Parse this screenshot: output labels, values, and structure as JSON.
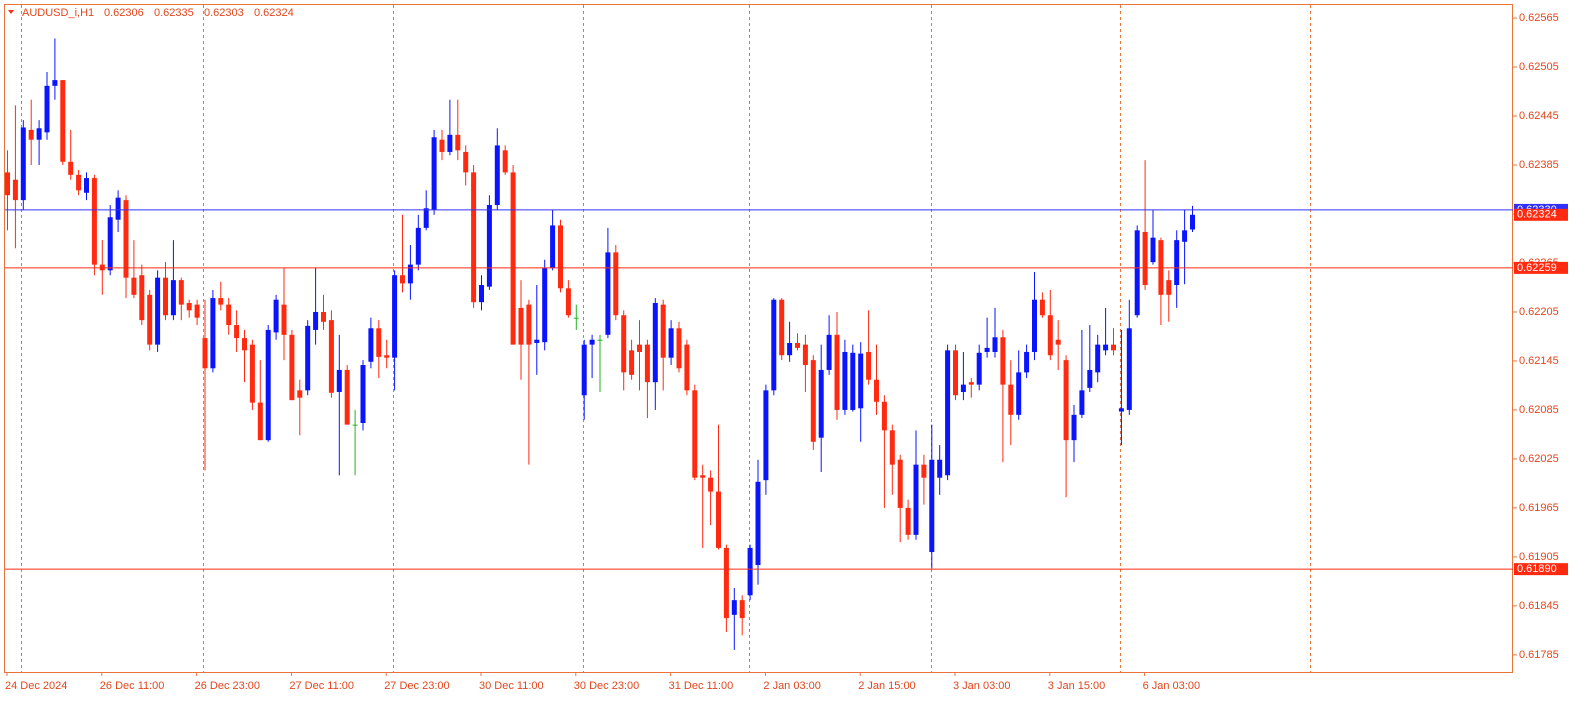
{
  "chart_data": {
    "type": "candlestick",
    "symbol": "AUDUSD_i,H1",
    "x": [
      "24 Dec 2024",
      null,
      null,
      null,
      null,
      null,
      null,
      null,
      null,
      null,
      null,
      null,
      "26 Dec 11:00",
      null,
      null,
      null,
      null,
      null,
      null,
      null,
      null,
      null,
      null,
      null,
      "26 Dec 23:00",
      null,
      null,
      null,
      null,
      null,
      null,
      null,
      null,
      null,
      null,
      null,
      "27 Dec 11:00",
      null,
      null,
      null,
      null,
      null,
      null,
      null,
      null,
      null,
      null,
      null,
      "27 Dec 23:00",
      null,
      null,
      null,
      null,
      null,
      null,
      null,
      null,
      null,
      null,
      null,
      "30 Dec 11:00",
      null,
      null,
      null,
      null,
      null,
      null,
      null,
      null,
      null,
      null,
      null,
      "30 Dec 23:00",
      null,
      null,
      null,
      null,
      null,
      null,
      null,
      null,
      null,
      null,
      null,
      "31 Dec 11:00",
      null,
      null,
      null,
      null,
      null,
      null,
      null,
      null,
      null,
      null,
      null,
      "2 Jan 03:00",
      null,
      null,
      null,
      null,
      null,
      null,
      null,
      null,
      null,
      null,
      null,
      "2 Jan 15:00",
      null,
      null,
      null,
      null,
      null,
      null,
      null,
      null,
      null,
      null,
      null,
      "3 Jan 03:00",
      null,
      null,
      null,
      null,
      null,
      null,
      null,
      null,
      null,
      null,
      null,
      "3 Jan 15:00",
      null,
      null,
      null,
      null,
      null,
      null,
      null,
      null,
      null,
      null,
      null,
      "6 Jan 03:00",
      null,
      null,
      null,
      null,
      null,
      null
    ],
    "open": [
      0.62376,
      0.62367,
      0.62342,
      0.62428,
      0.62416,
      0.62425,
      0.62482,
      0.62489,
      0.62389,
      0.62373,
      0.62351,
      0.62369,
      0.62263,
      0.62256,
      0.62318,
      0.62342,
      0.62247,
      0.6225,
      0.62226,
      0.62165,
      0.62247,
      0.62201,
      0.62244,
      0.62216,
      0.62214,
      0.62173,
      0.62136,
      0.62222,
      0.62214,
      0.62189,
      0.62173,
      0.62165,
      0.62094,
      0.62048,
      0.6218,
      0.62214,
      0.62177,
      0.62109,
      0.62109,
      0.62183,
      0.62205,
      0.62195,
      0.62107,
      0.62134,
      0.62067,
      0.62069,
      0.62144,
      0.62185,
      0.62152,
      0.62149,
      0.6225,
      0.6224,
      0.62263,
      0.62308,
      0.6233,
      0.62416,
      0.62401,
      0.62422,
      0.62401,
      0.62376,
      0.62217,
      0.62236,
      0.62336,
      0.62403,
      0.62376,
      0.6221,
      0.62214,
      0.62167,
      0.62168,
      0.62259,
      0.62311,
      0.62234,
      0.62198,
      0.62103,
      0.62165,
      0.62171,
      0.62177,
      0.62278,
      0.62201,
      0.62158,
      0.62165,
      0.62165,
      0.62119,
      0.62214,
      0.62149,
      0.62185,
      0.62165,
      0.62109,
      0.62005,
      0.62002,
      0.61985,
      0.61916,
      0.61834,
      0.61852,
      0.61858,
      0.61895,
      0.61999,
      0.62109,
      0.6222,
      0.62152,
      0.62167,
      0.62165,
      0.62146,
      0.62051,
      0.62134,
      0.62177,
      0.62085,
      0.62085,
      0.62087,
      0.62156,
      0.62122,
      0.62095,
      0.6206,
      0.62024,
      0.61965,
      0.61932,
      0.62018,
      0.61911,
      0.62002,
      0.62005,
      0.62158,
      0.62107,
      0.62119,
      0.62116,
      0.62156,
      0.62156,
      0.62174,
      0.62116,
      0.62079,
      0.62131,
      0.62156,
      0.6222,
      0.62201,
      0.62171,
      0.62146,
      0.62048,
      0.62079,
      0.62112,
      0.62131,
      0.62158,
      0.62165,
      0.62083,
      0.62085,
      0.62201,
      0.62303,
      0.62266,
      0.62293,
      0.62244,
      0.62238,
      0.62291,
      0.62306
    ],
    "high": [
      0.62403,
      0.62458,
      0.6244,
      0.62465,
      0.6244,
      0.62499,
      0.6254,
      0.62489,
      0.62428,
      0.62379,
      0.62376,
      0.62373,
      0.62293,
      0.62336,
      0.62354,
      0.62348,
      0.62293,
      0.62263,
      0.62232,
      0.62256,
      0.62266,
      0.62293,
      0.62247,
      0.6222,
      0.6222,
      0.6222,
      0.62232,
      0.62242,
      0.62222,
      0.62207,
      0.62183,
      0.62171,
      0.62146,
      0.62189,
      0.62226,
      0.62259,
      0.62183,
      0.62122,
      0.62195,
      0.62259,
      0.62226,
      0.62207,
      0.62177,
      0.6214,
      0.62085,
      0.62146,
      0.62198,
      0.62195,
      0.62171,
      0.62256,
      0.62324,
      0.62287,
      0.62324,
      0.62354,
      0.62428,
      0.62428,
      0.62465,
      0.62465,
      0.62409,
      0.62385,
      0.6225,
      0.62348,
      0.6243,
      0.62409,
      0.62385,
      0.62244,
      0.6222,
      0.62238,
      0.62269,
      0.6233,
      0.62318,
      0.62244,
      0.62214,
      0.62171,
      0.62177,
      0.62177,
      0.62308,
      0.62287,
      0.62207,
      0.62171,
      0.62195,
      0.62171,
      0.62222,
      0.6222,
      0.62195,
      0.62193,
      0.62171,
      0.62116,
      0.62018,
      0.62011,
      0.62067,
      0.6192,
      0.61867,
      0.61858,
      0.6192,
      0.62024,
      0.62116,
      0.62222,
      0.62222,
      0.62193,
      0.62179,
      0.62177,
      0.62152,
      0.62165,
      0.62201,
      0.62205,
      0.62171,
      0.62165,
      0.62168,
      0.62207,
      0.62165,
      0.62103,
      0.62067,
      0.6203,
      0.61975,
      0.6206,
      0.6203,
      0.62067,
      0.62042,
      0.62165,
      0.62165,
      0.62156,
      0.62124,
      0.62165,
      0.62198,
      0.6221,
      0.62183,
      0.62146,
      0.62158,
      0.62165,
      0.62254,
      0.62229,
      0.62232,
      0.62195,
      0.62152,
      0.62091,
      0.62183,
      0.62189,
      0.62177,
      0.6221,
      0.62185,
      0.62183,
      0.6222,
      0.62311,
      0.62391,
      0.6233,
      0.62296,
      0.62256,
      0.62305,
      0.6233,
      0.62335
    ],
    "low": [
      0.62305,
      0.62283,
      0.6233,
      0.62385,
      0.62385,
      0.62416,
      0.62465,
      0.62385,
      0.62367,
      0.62348,
      0.62342,
      0.6225,
      0.62226,
      0.6225,
      0.62303,
      0.62222,
      0.62222,
      0.62189,
      0.62158,
      0.62156,
      0.62195,
      0.62195,
      0.62195,
      0.62198,
      0.62189,
      0.62011,
      0.62131,
      0.62207,
      0.62177,
      0.62156,
      0.62119,
      0.62085,
      0.62048,
      0.62046,
      0.62171,
      0.62146,
      0.62097,
      0.62054,
      0.62103,
      0.62165,
      0.62183,
      0.621,
      0.62005,
      0.62067,
      0.62005,
      0.6206,
      0.62136,
      0.62124,
      0.62136,
      0.62109,
      0.62229,
      0.6222,
      0.62256,
      0.62305,
      0.62324,
      0.62391,
      0.62397,
      0.62391,
      0.6236,
      0.6221,
      0.62207,
      0.62232,
      0.6233,
      0.62373,
      0.62165,
      0.62122,
      0.62018,
      0.62128,
      0.62158,
      0.62256,
      0.62229,
      0.62198,
      0.62183,
      0.62073,
      0.62124,
      0.62107,
      0.62173,
      0.62195,
      0.62109,
      0.62122,
      0.62109,
      0.62075,
      0.62085,
      0.62109,
      0.6214,
      0.62131,
      0.62103,
      0.61999,
      0.61916,
      0.61944,
      0.61914,
      0.61813,
      0.61791,
      0.61809,
      0.61852,
      0.61871,
      0.61981,
      0.62103,
      0.62146,
      0.62144,
      0.62158,
      0.62107,
      0.62036,
      0.62009,
      0.62128,
      0.62073,
      0.62079,
      0.62083,
      0.62046,
      0.62116,
      0.62079,
      0.61965,
      0.61981,
      0.61923,
      0.61926,
      0.61926,
      0.61969,
      0.61891,
      0.61981,
      0.61999,
      0.62097,
      0.62097,
      0.621,
      0.62109,
      0.62149,
      0.62149,
      0.62021,
      0.62042,
      0.62073,
      0.62124,
      0.62146,
      0.62198,
      0.62146,
      0.62134,
      0.61978,
      0.62021,
      0.62075,
      0.62107,
      0.62119,
      0.62152,
      0.62152,
      0.62042,
      0.62079,
      0.62198,
      0.62232,
      0.62263,
      0.62189,
      0.62193,
      0.6221,
      0.62239,
      0.62303
    ],
    "close": [
      0.62348,
      0.62342,
      0.62431,
      0.62416,
      0.6243,
      0.62482,
      0.62489,
      0.62389,
      0.62373,
      0.62354,
      0.62369,
      0.62263,
      0.62256,
      0.62321,
      0.62345,
      0.62247,
      0.62226,
      0.62195,
      0.62165,
      0.62247,
      0.62201,
      0.62244,
      0.62214,
      0.62207,
      0.62198,
      0.62136,
      0.62222,
      0.62214,
      0.62189,
      0.62173,
      0.62158,
      0.62094,
      0.62048,
      0.62183,
      0.6222,
      0.62177,
      0.62097,
      0.621,
      0.62188,
      0.62205,
      0.62193,
      0.62106,
      0.62134,
      0.62067,
      0.62067,
      0.6214,
      0.62185,
      0.6215,
      0.62149,
      0.6225,
      0.6224,
      0.62263,
      0.62308,
      0.62332,
      0.62419,
      0.62401,
      0.62422,
      0.62403,
      0.62376,
      0.62217,
      0.62238,
      0.62336,
      0.62409,
      0.62376,
      0.62165,
      0.62165,
      0.62165,
      0.62171,
      0.62259,
      0.62311,
      0.62234,
      0.62201,
      0.62198,
      0.62165,
      0.62171,
      0.62171,
      0.62278,
      0.62201,
      0.62131,
      0.62128,
      0.62156,
      0.62119,
      0.62216,
      0.62149,
      0.62185,
      0.62136,
      0.62109,
      0.62002,
      0.62002,
      0.61985,
      0.61916,
      0.6183,
      0.61852,
      0.6183,
      0.61916,
      0.61997,
      0.62109,
      0.6222,
      0.62152,
      0.62167,
      0.62161,
      0.6214,
      0.62046,
      0.62134,
      0.62177,
      0.62085,
      0.62156,
      0.62155,
      0.62154,
      0.62122,
      0.62095,
      0.6206,
      0.62018,
      0.61965,
      0.61932,
      0.62018,
      0.62002,
      0.62024,
      0.62024,
      0.62158,
      0.62103,
      0.62116,
      0.62116,
      0.62155,
      0.62161,
      0.62174,
      0.62116,
      0.62079,
      0.62131,
      0.62156,
      0.6222,
      0.62201,
      0.62152,
      0.62165,
      0.62048,
      0.62079,
      0.62109,
      0.62134,
      0.62165,
      0.62165,
      0.62158,
      0.62087,
      0.62185,
      0.62305,
      0.62238,
      0.62296,
      0.62226,
      0.62226,
      0.62293,
      0.62305,
      0.62324
    ],
    "up_color": "#0a14ff",
    "down_color": "#ff2a10",
    "doji_color": "#22b422",
    "ylim": [
      0.61764,
      0.62581
    ],
    "yticks": [
      0.62565,
      0.62505,
      0.62445,
      0.62385,
      0.62325,
      0.62265,
      0.62205,
      0.62145,
      0.62085,
      0.62025,
      0.61965,
      0.61905,
      0.61845,
      0.61785
    ],
    "lines": [
      {
        "value": 0.6233,
        "label": "0.62330",
        "color": "#3030ff"
      },
      {
        "value": 0.62259,
        "color": "#ff2a10"
      },
      {
        "value": {
          "value": 0.6189,
          "label": "0.61890"
        },
        "color": "#ff2a10"
      }
    ]
  }
}
